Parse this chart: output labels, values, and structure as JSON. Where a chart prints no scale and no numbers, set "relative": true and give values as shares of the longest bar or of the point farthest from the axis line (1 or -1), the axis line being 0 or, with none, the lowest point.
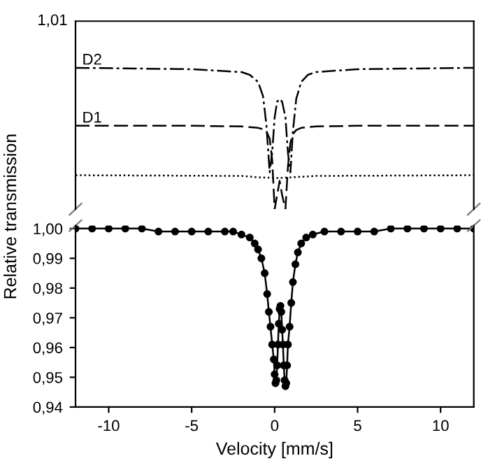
{
  "chart_data": [
    {
      "type": "line",
      "relative": true,
      "xlim": [
        -12,
        12
      ],
      "annotations": [
        "1,01"
      ],
      "series": [
        {
          "name": "D2",
          "color": "#000000",
          "line_style": "dashdot",
          "x": [
            -12,
            -5,
            -2,
            -1.5,
            -1,
            -0.7,
            -0.5,
            -0.3,
            -0.15,
            0,
            0.15,
            0.3,
            0.45,
            0.65,
            0.8,
            0.95,
            1.1,
            1.3,
            1.6,
            2,
            2.5,
            5,
            12
          ],
          "values": [
            1.0,
            0.99,
            0.97,
            0.95,
            0.9,
            0.8,
            0.6,
            0.26,
            0.4,
            0.65,
            0.76,
            0.78,
            0.76,
            0.65,
            0.4,
            0.26,
            0.55,
            0.78,
            0.9,
            0.95,
            0.97,
            0.99,
            1.0
          ]
        },
        {
          "name": "D1",
          "color": "#000000",
          "line_style": "dashed",
          "x": [
            -12,
            -5,
            -2,
            -1.5,
            -1,
            -0.7,
            -0.5,
            -0.3,
            -0.15,
            0,
            0.15,
            0.3,
            0.45,
            0.65,
            0.8,
            0.95,
            1.1,
            1.3,
            1.6,
            2,
            2.5,
            5,
            12
          ],
          "values": [
            0.59,
            0.59,
            0.585,
            0.58,
            0.575,
            0.565,
            0.55,
            0.5,
            0.35,
            0.0,
            0.1,
            0.2,
            0.1,
            0.0,
            0.3,
            0.47,
            0.53,
            0.56,
            0.575,
            0.58,
            0.585,
            0.59,
            0.59
          ]
        },
        {
          "color": "#000000",
          "line_style": "dotted",
          "x": [
            -12,
            -2,
            -1,
            0.3,
            1,
            2.5,
            12
          ],
          "values": [
            0.24,
            0.235,
            0.225,
            0.22,
            0.225,
            0.235,
            0.24
          ]
        }
      ]
    },
    {
      "type": "line",
      "xlim": [
        -12,
        12
      ],
      "ylim": [
        0.94,
        1.001
      ],
      "marker": "circle",
      "xticks": [
        -10,
        -5,
        0,
        5,
        10
      ],
      "yticks": [
        {
          "value": 0.94,
          "label": "0,94"
        },
        {
          "value": 0.95,
          "label": "0,95"
        },
        {
          "value": 0.96,
          "label": "0,96"
        },
        {
          "value": 0.97,
          "label": "0,97"
        },
        {
          "value": 0.98,
          "label": "0,98"
        },
        {
          "value": 0.99,
          "label": "0,99"
        },
        {
          "value": 1.0,
          "label": "1,00"
        }
      ],
      "xlabel": "Velocity [mm/s]",
      "ylabel": "Relative transmission",
      "series": [
        {
          "color": "#000000",
          "x": [
            -12,
            -11,
            -10,
            -9,
            -8,
            -7,
            -6,
            -5,
            -4,
            -3,
            -2.5,
            -2,
            -1.5,
            -1.2,
            -1,
            -0.8,
            -0.6,
            -0.45,
            -0.35,
            -0.25,
            -0.15,
            -0.05,
            0,
            0.05,
            0.1,
            0.15,
            0.2,
            0.25,
            0.3,
            0.35,
            0.4,
            0.45,
            0.5,
            0.55,
            0.6,
            0.65,
            0.7,
            0.75,
            0.8,
            0.9,
            1,
            1.1,
            1.25,
            1.4,
            1.6,
            1.9,
            2.3,
            3,
            4,
            5,
            6,
            7,
            8,
            9,
            10,
            11,
            12
          ],
          "values": [
            1.0,
            1.0,
            1.0,
            1.0,
            1.0,
            0.999,
            0.999,
            0.999,
            0.999,
            0.999,
            0.999,
            0.998,
            0.997,
            0.995,
            0.993,
            0.99,
            0.985,
            0.978,
            0.972,
            0.967,
            0.961,
            0.956,
            0.951,
            0.948,
            0.949,
            0.954,
            0.961,
            0.968,
            0.973,
            0.974,
            0.972,
            0.966,
            0.961,
            0.954,
            0.949,
            0.947,
            0.948,
            0.954,
            0.961,
            0.967,
            0.975,
            0.982,
            0.988,
            0.992,
            0.995,
            0.997,
            0.998,
            0.999,
            0.999,
            0.999,
            0.999,
            1.0,
            1.0,
            1.0,
            1.0,
            1.0,
            1.0
          ]
        }
      ]
    }
  ]
}
